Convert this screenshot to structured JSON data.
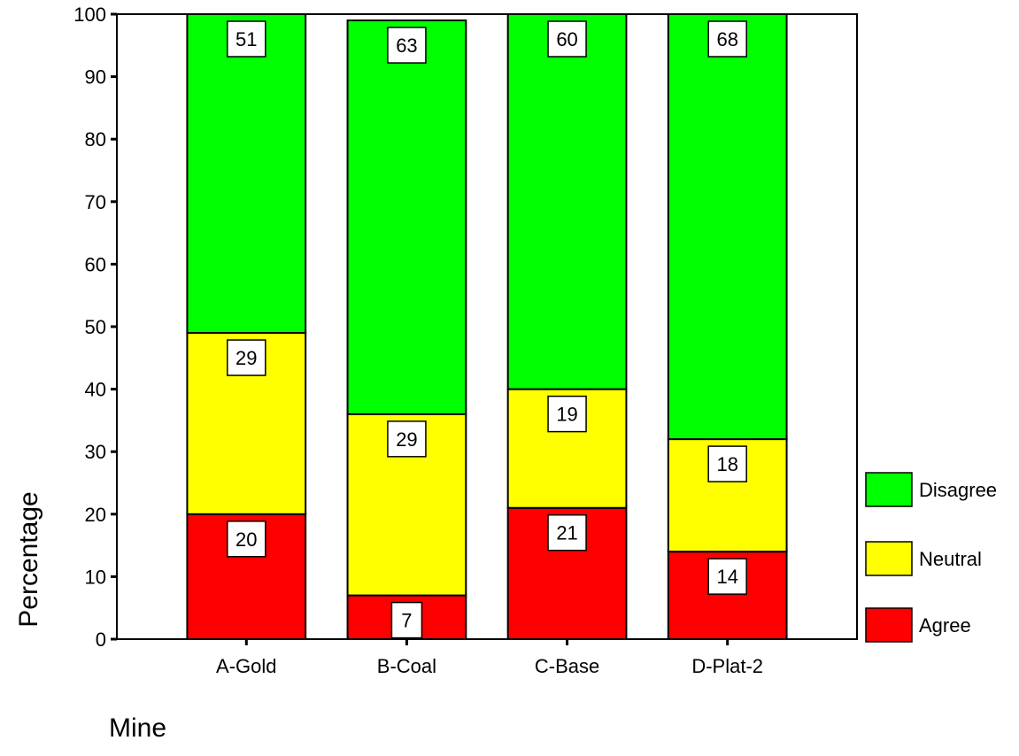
{
  "chart_data": {
    "type": "bar",
    "stacked": true,
    "title": "",
    "xlabel": "Mine",
    "ylabel": "Percentage",
    "ylim": [
      0,
      100
    ],
    "yticks": [
      0,
      10,
      20,
      30,
      40,
      50,
      60,
      70,
      80,
      90,
      100
    ],
    "categories": [
      "A-Gold",
      "B-Coal",
      "C-Base",
      "D-Plat-2"
    ],
    "series": [
      {
        "name": "Agree",
        "color": "#ff0000",
        "values": [
          20,
          7,
          21,
          14
        ]
      },
      {
        "name": "Neutral",
        "color": "#ffff00",
        "values": [
          29,
          29,
          19,
          18
        ]
      },
      {
        "name": "Disagree",
        "color": "#00ff00",
        "values": [
          51,
          63,
          60,
          68
        ]
      }
    ],
    "legend_order": [
      "Disagree",
      "Neutral",
      "Agree"
    ],
    "legend_position": "right",
    "grid": false
  }
}
